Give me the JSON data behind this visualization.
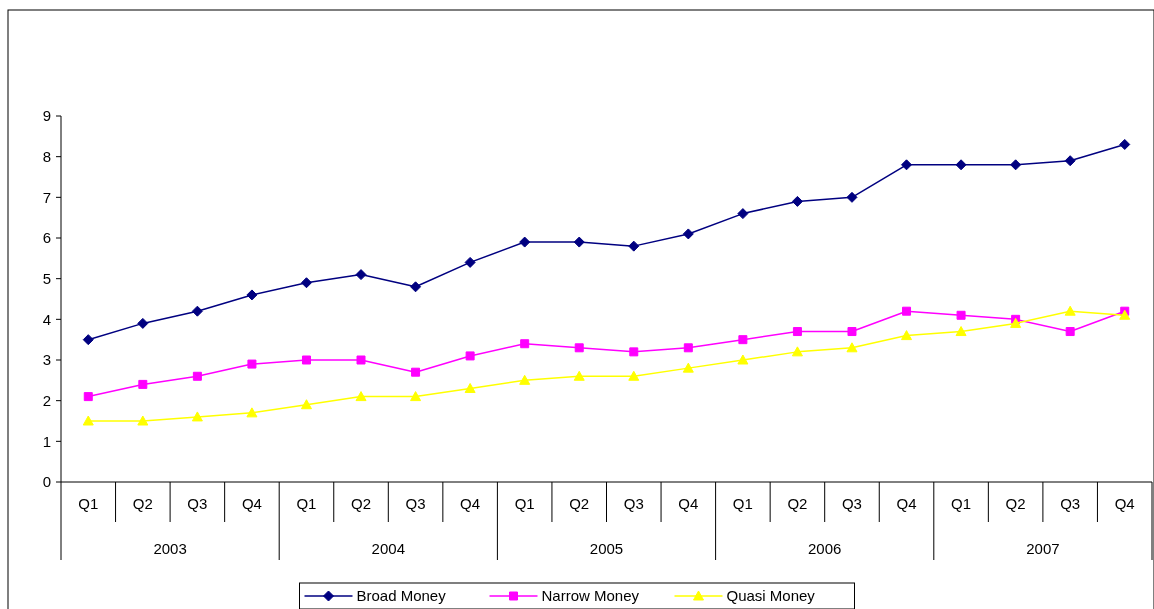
{
  "chart_data": {
    "type": "line",
    "categories": [
      "Q1",
      "Q2",
      "Q3",
      "Q4",
      "Q1",
      "Q2",
      "Q3",
      "Q4",
      "Q1",
      "Q2",
      "Q3",
      "Q4",
      "Q1",
      "Q2",
      "Q3",
      "Q4",
      "Q1",
      "Q2",
      "Q3",
      "Q4"
    ],
    "annotations": [
      "2003",
      "2004",
      "2005",
      "2006",
      "2007"
    ],
    "ylim": [
      0,
      9
    ],
    "yticks": [
      0,
      1,
      2,
      3,
      4,
      5,
      6,
      7,
      8,
      9
    ],
    "legend": "bottom",
    "series": [
      {
        "name": "Broad Money",
        "color": "#000080",
        "marker": "diamond",
        "values": [
          3.5,
          3.9,
          4.2,
          4.6,
          4.9,
          5.1,
          4.8,
          5.4,
          5.9,
          5.9,
          5.8,
          6.1,
          6.6,
          6.9,
          7.0,
          7.8,
          7.8,
          7.8,
          7.9,
          8.3
        ]
      },
      {
        "name": "Narrow Money",
        "color": "#ff00ff",
        "marker": "square",
        "values": [
          2.1,
          2.4,
          2.6,
          2.9,
          3.0,
          3.0,
          2.7,
          3.1,
          3.4,
          3.3,
          3.2,
          3.3,
          3.5,
          3.7,
          3.7,
          4.2,
          4.1,
          4.0,
          3.7,
          4.2
        ]
      },
      {
        "name": "Quasi Money",
        "color": "#ffff00",
        "marker": "triangle",
        "values": [
          1.5,
          1.5,
          1.6,
          1.7,
          1.9,
          2.1,
          2.1,
          2.3,
          2.5,
          2.6,
          2.6,
          2.8,
          3.0,
          3.2,
          3.3,
          3.6,
          3.7,
          3.9,
          4.2,
          4.1
        ]
      }
    ]
  }
}
